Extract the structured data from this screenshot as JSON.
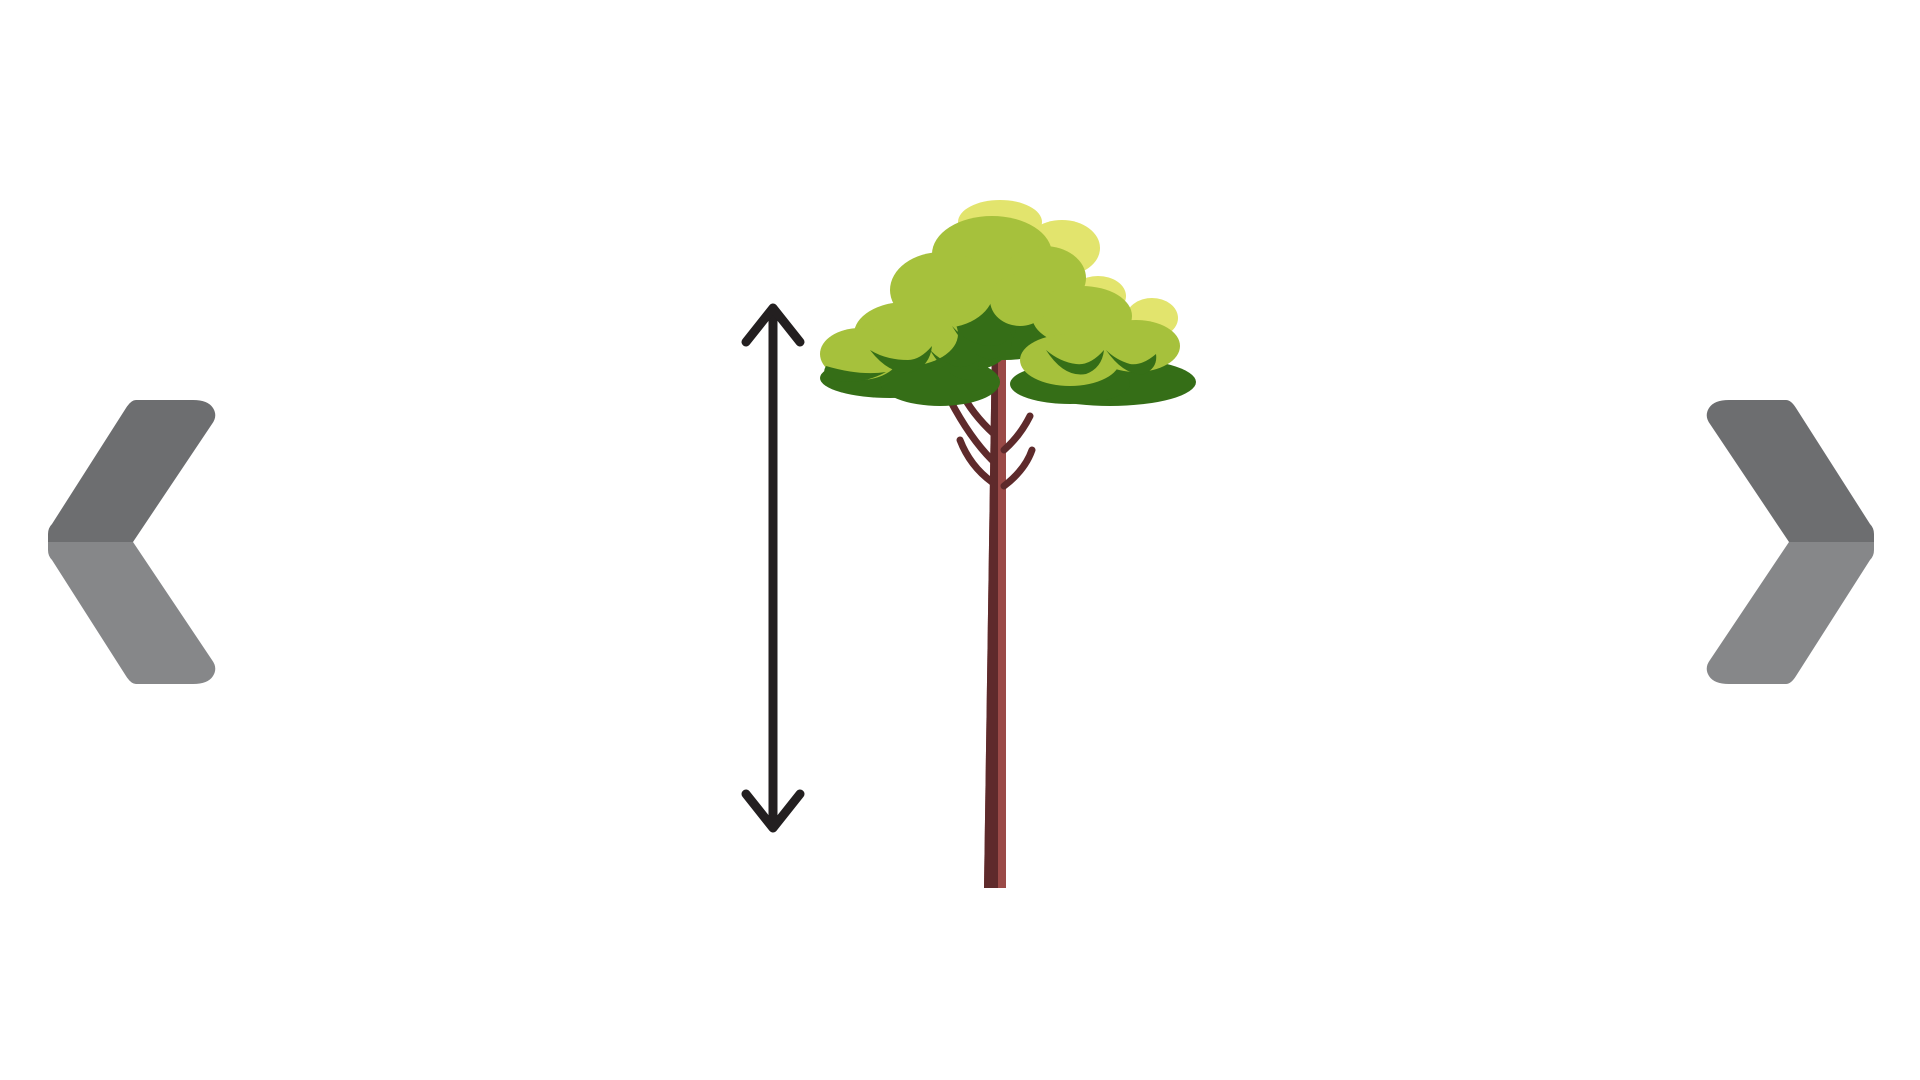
{
  "navigation": {
    "previous": {
      "icon": "chevron-left-icon",
      "color_top": "#6d6e70",
      "color_bottom": "#868789"
    },
    "next": {
      "icon": "chevron-right-icon",
      "color_top": "#6d6e70",
      "color_bottom": "#868789"
    }
  },
  "illustration": {
    "measure_arrow": {
      "icon": "double-headed-vertical-arrow-icon",
      "color": "#231f20"
    },
    "tree": {
      "icon": "tree-icon",
      "colors": {
        "trunk_light": "#9a4a47",
        "trunk_dark": "#5e2a2b",
        "leaf_dark": "#356e17",
        "leaf_mid": "#a6c13c",
        "leaf_light": "#e2e46d"
      }
    }
  }
}
